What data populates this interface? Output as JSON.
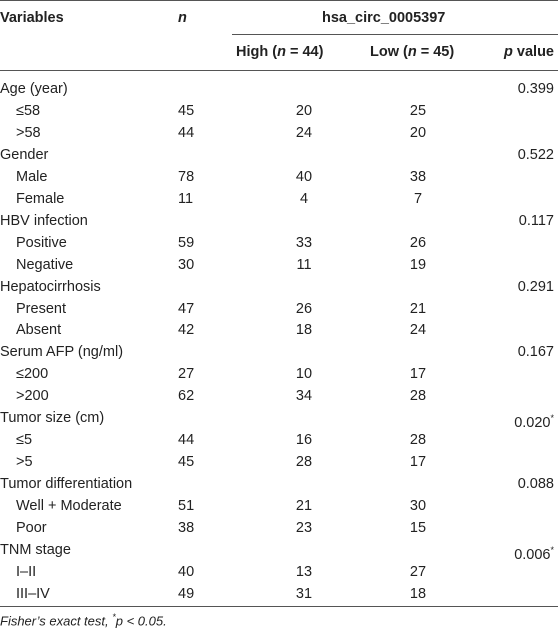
{
  "header": {
    "variables": "Variables",
    "n": "n",
    "group": "hsa_circ_0005397",
    "high_prefix": "High (",
    "high_n": "n",
    "high_suffix": " = 44)",
    "low_prefix": "Low (",
    "low_n": "n",
    "low_suffix": " = 45)",
    "p_italic": "p",
    "p_rest": " value"
  },
  "rows": [
    {
      "label": "Age (year)",
      "n": "",
      "high": "",
      "low": "",
      "p": "0.399",
      "sub": false
    },
    {
      "label": "≤58",
      "n": "45",
      "high": "20",
      "low": "25",
      "p": "",
      "sub": true
    },
    {
      "label": ">58",
      "n": "44",
      "high": "24",
      "low": "20",
      "p": "",
      "sub": true
    },
    {
      "label": "Gender",
      "n": "",
      "high": "",
      "low": "",
      "p": "0.522",
      "sub": false
    },
    {
      "label": "Male",
      "n": "78",
      "high": "40",
      "low": "38",
      "p": "",
      "sub": true
    },
    {
      "label": "Female",
      "n": "11",
      "high": "4",
      "low": "7",
      "p": "",
      "sub": true
    },
    {
      "label": "HBV infection",
      "n": "",
      "high": "",
      "low": "",
      "p": "0.117",
      "sub": false
    },
    {
      "label": "Positive",
      "n": "59",
      "high": "33",
      "low": "26",
      "p": "",
      "sub": true
    },
    {
      "label": "Negative",
      "n": "30",
      "high": "11",
      "low": "19",
      "p": "",
      "sub": true
    },
    {
      "label": "Hepatocirrhosis",
      "n": "",
      "high": "",
      "low": "",
      "p": "0.291",
      "sub": false
    },
    {
      "label": "Present",
      "n": "47",
      "high": "26",
      "low": "21",
      "p": "",
      "sub": true
    },
    {
      "label": "Absent",
      "n": "42",
      "high": "18",
      "low": "24",
      "p": "",
      "sub": true
    },
    {
      "label": "Serum AFP (ng/ml)",
      "n": "",
      "high": "",
      "low": "",
      "p": "0.167",
      "sub": false
    },
    {
      "label": "≤200",
      "n": "27",
      "high": "10",
      "low": "17",
      "p": "",
      "sub": true
    },
    {
      "label": ">200",
      "n": "62",
      "high": "34",
      "low": "28",
      "p": "",
      "sub": true
    },
    {
      "label": "Tumor size (cm)",
      "n": "",
      "high": "",
      "low": "",
      "p": "0.020",
      "star": "*",
      "sub": false
    },
    {
      "label": "≤5",
      "n": "44",
      "high": "16",
      "low": "28",
      "p": "",
      "sub": true
    },
    {
      "label": ">5",
      "n": "45",
      "high": "28",
      "low": "17",
      "p": "",
      "sub": true
    },
    {
      "label": "Tumor differentiation",
      "n": "",
      "high": "",
      "low": "",
      "p": "0.088",
      "sub": false
    },
    {
      "label": "Well + Moderate",
      "n": "51",
      "high": "21",
      "low": "30",
      "p": "",
      "sub": true
    },
    {
      "label": "Poor",
      "n": "38",
      "high": "23",
      "low": "15",
      "p": "",
      "sub": true
    },
    {
      "label": "TNM stage",
      "n": "",
      "high": "",
      "low": "",
      "p": "0.006",
      "star": "*",
      "sub": false
    },
    {
      "label": "I–II",
      "n": "40",
      "high": "13",
      "low": "27",
      "p": "",
      "sub": true
    },
    {
      "label": "III–IV",
      "n": "49",
      "high": "31",
      "low": "18",
      "p": "",
      "sub": true
    }
  ],
  "footer": {
    "text": "Fisher’s exact test, ",
    "star": "*",
    "rest": "p < 0.05."
  }
}
